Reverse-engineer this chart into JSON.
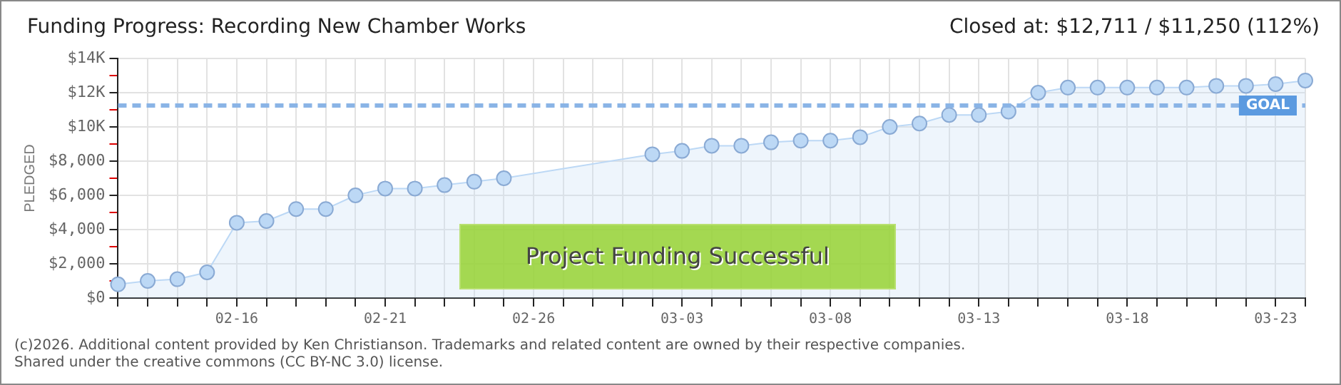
{
  "chart_data": {
    "type": "area",
    "title": "Funding Progress: Recording New Chamber Works",
    "subtitle": "Closed at:  $12,711 /  $11,250 (112%)",
    "ylabel": "PLEDGED",
    "categories": [
      null,
      null,
      null,
      null,
      "02-16",
      null,
      null,
      null,
      null,
      "02-21",
      null,
      null,
      null,
      null,
      "02-26",
      null,
      null,
      null,
      null,
      "03-03",
      null,
      null,
      null,
      null,
      "03-08",
      null,
      null,
      null,
      null,
      "03-13",
      null,
      null,
      null,
      null,
      "03-18",
      null,
      null,
      null,
      null,
      "03-23",
      null
    ],
    "series": [
      {
        "color": "#bcd8f5",
        "values": [
          800,
          1000,
          1100,
          1500,
          4400,
          4500,
          5200,
          5200,
          6000,
          6400,
          6400,
          6600,
          6800,
          7000,
          null,
          null,
          null,
          null,
          8400,
          8600,
          8900,
          8900,
          9100,
          9200,
          9200,
          9400,
          10000,
          10200,
          10700,
          10700,
          10900,
          12000,
          12300,
          12300,
          12300,
          12300,
          12300,
          12400,
          12400,
          12500,
          12711
        ]
      }
    ],
    "ylim": [
      0,
      14000
    ],
    "yticks": [
      {
        "value": 0,
        "label": "$0"
      },
      {
        "value": 1000,
        "label": null
      },
      {
        "value": 2000,
        "label": "$2,000"
      },
      {
        "value": 3000,
        "label": null
      },
      {
        "value": 4000,
        "label": "$4,000"
      },
      {
        "value": 5000,
        "label": null
      },
      {
        "value": 6000,
        "label": "$6,000"
      },
      {
        "value": 7000,
        "label": null
      },
      {
        "value": 8000,
        "label": "$8,000"
      },
      {
        "value": 9000,
        "label": null
      },
      {
        "value": 10000,
        "label": "$10K"
      },
      {
        "value": 11000,
        "label": null
      },
      {
        "value": 12000,
        "label": "$12K"
      },
      {
        "value": 13000,
        "label": null
      },
      {
        "value": 14000,
        "label": "$14K"
      }
    ],
    "ref_lines": [
      {
        "axis": "y",
        "value": 11250,
        "label": "GOAL",
        "color": "#8ab4e6",
        "line_style": "dashed"
      }
    ],
    "annotations": [
      "Project Funding Successful",
      "(c)2026. Additional content provided by Ken Christianson. Trademarks and related content are owned by their respective companies.",
      "Shared under the creative commons (CC BY-NC 3.0) license."
    ],
    "grid": true,
    "legend": false,
    "marker": "circle",
    "line_style": "solid"
  }
}
